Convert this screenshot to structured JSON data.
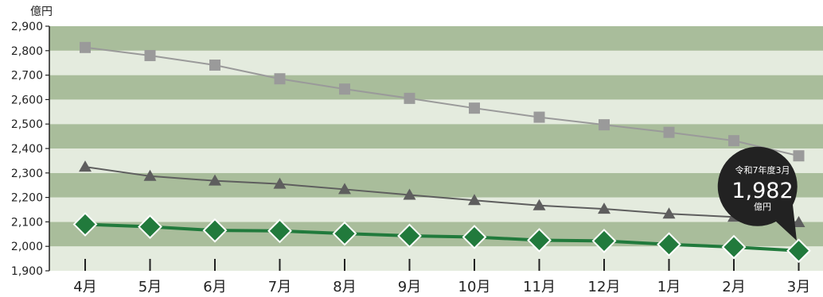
{
  "chart_data": {
    "type": "line",
    "unit_label": "億円",
    "ylim": [
      1900,
      2900
    ],
    "y_ticks": [
      1900,
      2000,
      2100,
      2200,
      2300,
      2400,
      2500,
      2600,
      2700,
      2800,
      2900
    ],
    "y_tick_labels": [
      "1,900",
      "2,000",
      "2,100",
      "2,200",
      "2,300",
      "2,400",
      "2,500",
      "2,600",
      "2,700",
      "2,800",
      "2,900"
    ],
    "categories": [
      "4月",
      "5月",
      "6月",
      "7月",
      "8月",
      "9月",
      "10月",
      "11月",
      "12月",
      "1月",
      "2月",
      "3月"
    ],
    "series": [
      {
        "marker": "square",
        "color": "#9a9a9a",
        "values": [
          2813,
          2780,
          2741,
          2685,
          2643,
          2605,
          2565,
          2528,
          2497,
          2466,
          2432,
          2370
        ]
      },
      {
        "marker": "triangle",
        "color": "#5e5e5e",
        "values": [
          2325,
          2287,
          2268,
          2255,
          2233,
          2210,
          2188,
          2167,
          2153,
          2133,
          2120,
          2098
        ]
      },
      {
        "marker": "diamond",
        "color": "#217a3c",
        "values": [
          2090,
          2080,
          2065,
          2063,
          2052,
          2043,
          2038,
          2025,
          2022,
          2008,
          1997,
          1982
        ]
      }
    ],
    "grid": "alternating horizontal bands",
    "band_colors": [
      "#a9bd9b",
      "#e4ebde"
    ]
  },
  "callout": {
    "period": "令和7年度3月",
    "value": "1,982",
    "unit": "億円",
    "background": "#222222"
  }
}
